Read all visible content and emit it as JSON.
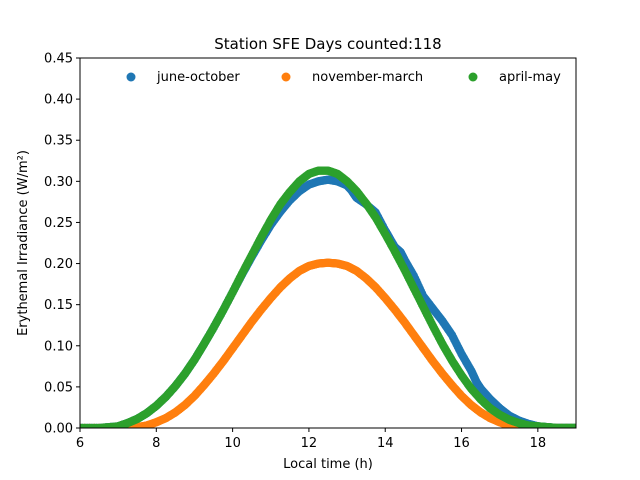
{
  "chart_data": {
    "type": "scatter",
    "title": "Station SFE Days counted:118",
    "xlabel": "Local time (h)",
    "ylabel": "Erythemal Irradiance (W/m²)",
    "xlim": [
      6,
      19
    ],
    "ylim": [
      0,
      0.45
    ],
    "xticks": [
      6,
      8,
      10,
      12,
      14,
      16,
      18
    ],
    "yticks": [
      0.0,
      0.05,
      0.1,
      0.15,
      0.2,
      0.25,
      0.3,
      0.35,
      0.4,
      0.45
    ],
    "grid": false,
    "legend_placement": "top",
    "series": [
      {
        "name": "june-october",
        "color": "#1f77b4",
        "x": [
          6.0,
          6.5,
          7.0,
          7.25,
          7.5,
          7.75,
          8.0,
          8.25,
          8.5,
          8.75,
          9.0,
          9.25,
          9.5,
          9.75,
          10.0,
          10.25,
          10.5,
          10.75,
          11.0,
          11.25,
          11.5,
          11.75,
          12.0,
          12.25,
          12.5,
          12.75,
          13.0,
          13.1,
          13.25,
          13.5,
          13.75,
          14.0,
          14.1,
          14.25,
          14.4,
          14.5,
          14.75,
          15.0,
          15.25,
          15.5,
          15.75,
          16.0,
          16.25,
          16.4,
          16.5,
          16.75,
          17.0,
          17.25,
          17.5,
          17.75,
          18.0,
          18.25,
          18.5,
          18.75,
          19.0
        ],
        "y": [
          0.0,
          0.0,
          0.002,
          0.006,
          0.011,
          0.018,
          0.027,
          0.038,
          0.051,
          0.066,
          0.083,
          0.102,
          0.122,
          0.143,
          0.165,
          0.187,
          0.208,
          0.228,
          0.247,
          0.263,
          0.277,
          0.288,
          0.296,
          0.3,
          0.302,
          0.3,
          0.295,
          0.29,
          0.28,
          0.272,
          0.262,
          0.24,
          0.232,
          0.22,
          0.214,
          0.205,
          0.185,
          0.16,
          0.145,
          0.13,
          0.113,
          0.09,
          0.07,
          0.055,
          0.048,
          0.035,
          0.024,
          0.015,
          0.009,
          0.005,
          0.002,
          0.001,
          0.0,
          0.0,
          0.0
        ]
      },
      {
        "name": "november-march",
        "color": "#ff7f0e",
        "x": [
          6.0,
          7.0,
          7.5,
          7.75,
          8.0,
          8.25,
          8.5,
          8.75,
          9.0,
          9.25,
          9.5,
          9.75,
          10.0,
          10.25,
          10.5,
          10.75,
          11.0,
          11.25,
          11.5,
          11.75,
          12.0,
          12.25,
          12.5,
          12.75,
          13.0,
          13.25,
          13.5,
          13.75,
          14.0,
          14.25,
          14.5,
          14.75,
          15.0,
          15.25,
          15.5,
          15.75,
          16.0,
          16.25,
          16.5,
          16.75,
          17.0,
          17.25,
          17.5,
          17.75,
          18.0,
          19.0
        ],
        "y": [
          0.0,
          0.0,
          0.001,
          0.003,
          0.007,
          0.012,
          0.019,
          0.028,
          0.039,
          0.052,
          0.066,
          0.081,
          0.097,
          0.113,
          0.129,
          0.144,
          0.158,
          0.171,
          0.182,
          0.191,
          0.197,
          0.2,
          0.201,
          0.2,
          0.197,
          0.191,
          0.182,
          0.171,
          0.158,
          0.144,
          0.129,
          0.113,
          0.097,
          0.081,
          0.066,
          0.052,
          0.039,
          0.028,
          0.019,
          0.012,
          0.007,
          0.003,
          0.001,
          0.0,
          0.0,
          0.0
        ]
      },
      {
        "name": "april-may",
        "color": "#2ca02c",
        "x": [
          6.0,
          6.5,
          7.0,
          7.25,
          7.5,
          7.75,
          8.0,
          8.25,
          8.5,
          8.75,
          9.0,
          9.25,
          9.5,
          9.75,
          10.0,
          10.25,
          10.5,
          10.75,
          11.0,
          11.25,
          11.5,
          11.75,
          12.0,
          12.25,
          12.5,
          12.75,
          13.0,
          13.25,
          13.5,
          13.75,
          14.0,
          14.25,
          14.5,
          14.75,
          15.0,
          15.25,
          15.5,
          15.75,
          16.0,
          16.25,
          16.5,
          16.75,
          17.0,
          17.25,
          17.5,
          17.75,
          18.0,
          18.25,
          18.5,
          18.75,
          19.0
        ],
        "y": [
          0.0,
          0.0,
          0.002,
          0.006,
          0.011,
          0.018,
          0.027,
          0.038,
          0.051,
          0.066,
          0.083,
          0.102,
          0.122,
          0.143,
          0.165,
          0.188,
          0.21,
          0.232,
          0.253,
          0.272,
          0.287,
          0.3,
          0.309,
          0.313,
          0.313,
          0.309,
          0.3,
          0.288,
          0.273,
          0.256,
          0.236,
          0.215,
          0.193,
          0.17,
          0.147,
          0.124,
          0.102,
          0.082,
          0.064,
          0.048,
          0.035,
          0.024,
          0.016,
          0.01,
          0.006,
          0.003,
          0.002,
          0.001,
          0.0,
          0.0,
          0.0
        ]
      }
    ]
  }
}
